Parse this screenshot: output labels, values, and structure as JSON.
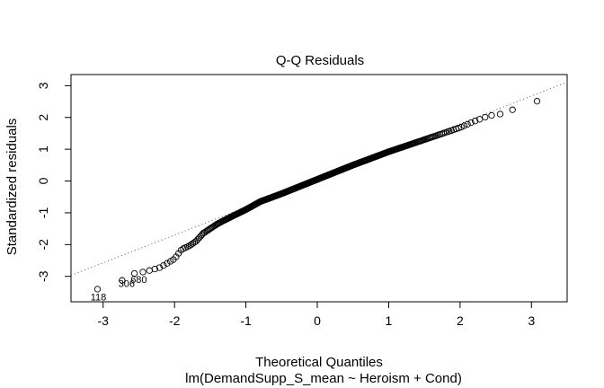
{
  "chart_data": {
    "type": "scatter",
    "title": "Q-Q Residuals",
    "xlabel": "Theoretical Quantiles",
    "ylabel": "Standardized residuals",
    "subtitle": "lm(DemandSupp_S_mean ~ Heroism + Cond)",
    "xlim": [
      -3.45,
      3.5
    ],
    "ylim": [
      -3.8,
      3.35
    ],
    "xticks": [
      "-3",
      "-2",
      "-1",
      "0",
      "1",
      "2",
      "3"
    ],
    "yticks": [
      "-3",
      "-2",
      "-1",
      "0",
      "1",
      "2",
      "3"
    ],
    "grid": false,
    "reference_line": {
      "slope": 0.875,
      "intercept": 0.05,
      "style": "dotted"
    },
    "knots": {
      "x": [
        -3.24,
        -3.0,
        -2.85,
        -2.7,
        -2.6,
        -2.4,
        -2.2,
        -2.0,
        -1.9,
        -1.8,
        -1.7,
        -1.6,
        -1.4,
        -1.2,
        -1.0,
        -0.8,
        -0.5,
        0.0,
        0.5,
        1.0,
        1.5,
        2.0,
        2.2,
        2.4,
        2.6,
        2.8,
        3.0,
        3.24
      ],
      "y": [
        -3.65,
        -3.28,
        -3.22,
        -3.1,
        -2.92,
        -2.85,
        -2.72,
        -2.45,
        -2.15,
        -2.05,
        -1.9,
        -1.65,
        -1.35,
        -1.12,
        -0.9,
        -0.65,
        -0.4,
        0.05,
        0.5,
        0.92,
        1.3,
        1.68,
        1.88,
        2.05,
        2.12,
        2.3,
        2.42,
        2.7
      ]
    },
    "n_points": 480,
    "labeled_points": [
      {
        "label": "118",
        "x": -3.24,
        "y": -3.65
      },
      {
        "label": "306",
        "x": -2.85,
        "y": -3.22
      },
      {
        "label": "680",
        "x": -2.68,
        "y": -3.1
      }
    ]
  }
}
